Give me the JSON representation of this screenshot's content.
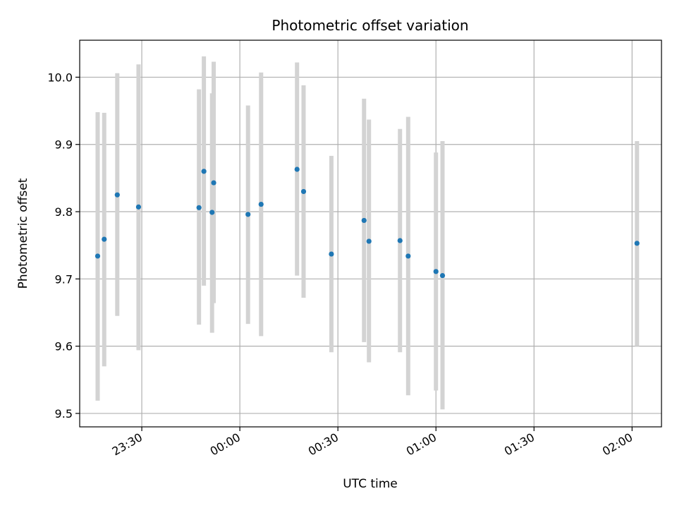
{
  "chart_data": {
    "type": "scatter",
    "title": "Photometric offset variation",
    "xlabel": "UTC time",
    "ylabel": "Photometric offset",
    "x_unit": "time of day (HH:MM), spanning midnight",
    "xlim": [
      "23:11",
      "02:09"
    ],
    "ylim": [
      9.48,
      10.055
    ],
    "x_ticks": [
      "23:30",
      "00:00",
      "00:30",
      "01:00",
      "01:30",
      "02:00"
    ],
    "y_ticks": [
      "9.5",
      "9.6",
      "9.7",
      "9.8",
      "9.9",
      "10.0"
    ],
    "grid": true,
    "point_color": "#1f77b4",
    "errorbar_color": "#d3d3d3",
    "points": [
      {
        "time": "23:16.5",
        "value": 9.734,
        "low": 9.519,
        "high": 9.948
      },
      {
        "time": "23:18.5",
        "value": 9.759,
        "low": 9.57,
        "high": 9.947
      },
      {
        "time": "23:22.5",
        "value": 9.825,
        "low": 9.645,
        "high": 10.006
      },
      {
        "time": "23:29.0",
        "value": 9.807,
        "low": 9.594,
        "high": 10.019
      },
      {
        "time": "23:47.5",
        "value": 9.806,
        "low": 9.632,
        "high": 9.982
      },
      {
        "time": "23:49.0",
        "value": 9.86,
        "low": 9.69,
        "high": 10.031
      },
      {
        "time": "23:51.5",
        "value": 9.799,
        "low": 9.62,
        "high": 9.976
      },
      {
        "time": "23:52.0",
        "value": 9.843,
        "low": 9.664,
        "high": 10.023
      },
      {
        "time": "00:02.5",
        "value": 9.796,
        "low": 9.633,
        "high": 9.958
      },
      {
        "time": "00:06.5",
        "value": 9.811,
        "low": 9.615,
        "high": 10.007
      },
      {
        "time": "00:17.5",
        "value": 9.863,
        "low": 9.705,
        "high": 10.022
      },
      {
        "time": "00:19.5",
        "value": 9.83,
        "low": 9.672,
        "high": 9.988
      },
      {
        "time": "00:28.0",
        "value": 9.737,
        "low": 9.591,
        "high": 9.883
      },
      {
        "time": "00:38.0",
        "value": 9.787,
        "low": 9.606,
        "high": 9.968
      },
      {
        "time": "00:39.5",
        "value": 9.756,
        "low": 9.576,
        "high": 9.937
      },
      {
        "time": "00:49.0",
        "value": 9.757,
        "low": 9.591,
        "high": 9.923
      },
      {
        "time": "00:51.5",
        "value": 9.734,
        "low": 9.527,
        "high": 9.941
      },
      {
        "time": "01:00.0",
        "value": 9.711,
        "low": 9.534,
        "high": 9.888
      },
      {
        "time": "01:02.0",
        "value": 9.705,
        "low": 9.506,
        "high": 9.905
      },
      {
        "time": "02:01.5",
        "value": 9.753,
        "low": 9.6,
        "high": 9.905
      }
    ]
  }
}
